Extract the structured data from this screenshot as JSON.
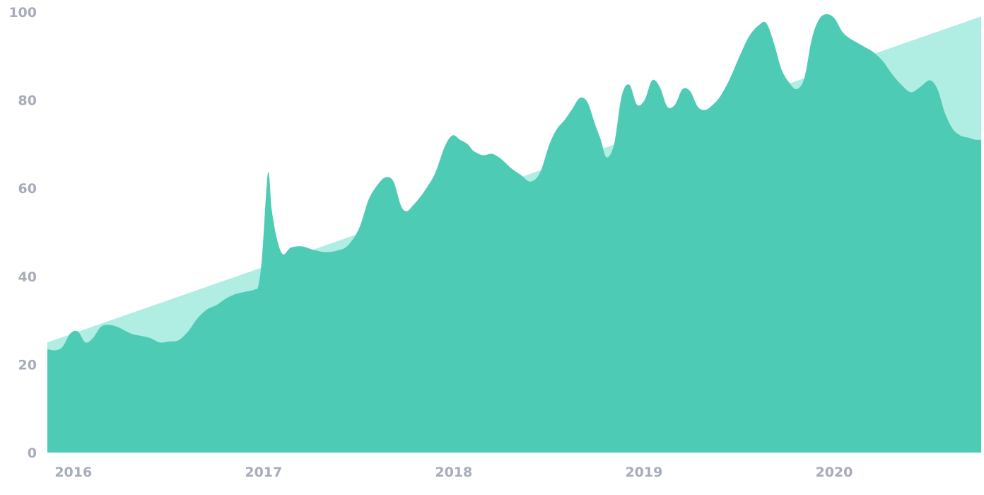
{
  "colors": {
    "trend_fill": "#b0ede2",
    "area_fill": "#4ecbb4",
    "tick_text": "#a7acb9",
    "background": "#ffffff"
  },
  "chart_data": {
    "type": "area",
    "title": "",
    "xlabel": "",
    "ylabel": "",
    "xlim": [
      2015.96,
      2020.87
    ],
    "ylim": [
      0,
      100
    ],
    "grid": false,
    "legend": "none",
    "x_ticks": [
      {
        "value": 2016,
        "label": "2016"
      },
      {
        "value": 2017,
        "label": "2017"
      },
      {
        "value": 2018,
        "label": "2018"
      },
      {
        "value": 2019,
        "label": "2019"
      },
      {
        "value": 2020,
        "label": "2020"
      }
    ],
    "y_ticks": [
      {
        "value": 0,
        "label": "0"
      },
      {
        "value": 20,
        "label": "20"
      },
      {
        "value": 40,
        "label": "40"
      },
      {
        "value": 60,
        "label": "60"
      },
      {
        "value": 80,
        "label": "80"
      },
      {
        "value": 100,
        "label": "100"
      }
    ],
    "series": [
      {
        "role": "trend",
        "x": [
          2015.96,
          2020.87
        ],
        "y": [
          25,
          99
        ]
      },
      {
        "role": "actual",
        "x": [
          2015.96,
          2016.0,
          2016.04,
          2016.08,
          2016.12,
          2016.16,
          2016.2,
          2016.24,
          2016.28,
          2016.33,
          2016.4,
          2016.45,
          2016.5,
          2016.55,
          2016.6,
          2016.65,
          2016.7,
          2016.75,
          2016.8,
          2016.85,
          2016.9,
          2016.95,
          2017.0,
          2017.05,
          2017.07,
          2017.09,
          2017.12,
          2017.14,
          2017.17,
          2017.2,
          2017.24,
          2017.3,
          2017.36,
          2017.42,
          2017.48,
          2017.54,
          2017.6,
          2017.65,
          2017.7,
          2017.74,
          2017.78,
          2017.82,
          2017.85,
          2017.88,
          2017.92,
          2017.96,
          2018.0,
          2018.05,
          2018.09,
          2018.13,
          2018.17,
          2018.2,
          2018.25,
          2018.3,
          2018.35,
          2018.4,
          2018.45,
          2018.5,
          2018.55,
          2018.6,
          2018.64,
          2018.68,
          2018.72,
          2018.76,
          2018.8,
          2018.84,
          2018.87,
          2018.9,
          2018.94,
          2018.98,
          2019.02,
          2019.06,
          2019.1,
          2019.14,
          2019.18,
          2019.22,
          2019.26,
          2019.3,
          2019.34,
          2019.38,
          2019.42,
          2019.46,
          2019.5,
          2019.55,
          2019.6,
          2019.65,
          2019.7,
          2019.74,
          2019.78,
          2019.82,
          2019.86,
          2019.9,
          2019.94,
          2019.98,
          2020.02,
          2020.06,
          2020.1,
          2020.14,
          2020.18,
          2020.22,
          2020.26,
          2020.3,
          2020.35,
          2020.4,
          2020.45,
          2020.5,
          2020.55,
          2020.6,
          2020.64,
          2020.68,
          2020.72,
          2020.76,
          2020.8,
          2020.84,
          2020.87
        ],
        "y": [
          23.5,
          23.2,
          24.0,
          27.0,
          27.5,
          25.0,
          26.0,
          28.5,
          29.0,
          28.5,
          27.0,
          26.5,
          26.0,
          25.0,
          25.2,
          25.5,
          27.5,
          30.5,
          32.5,
          33.5,
          35.0,
          36.0,
          36.5,
          37.0,
          38.0,
          45.0,
          63.5,
          55.0,
          48.0,
          45.0,
          46.5,
          46.8,
          46.0,
          45.5,
          45.8,
          47.0,
          51.0,
          57.5,
          61.0,
          62.5,
          61.5,
          56.0,
          54.8,
          56.0,
          58.0,
          60.5,
          63.5,
          69.5,
          72.0,
          71.0,
          70.0,
          68.5,
          67.5,
          67.8,
          66.5,
          64.5,
          63.0,
          61.5,
          63.5,
          70.0,
          73.5,
          75.5,
          78.0,
          80.5,
          79.5,
          74.5,
          71.0,
          67.0,
          70.0,
          81.0,
          83.5,
          79.0,
          80.0,
          84.5,
          83.0,
          78.5,
          79.0,
          82.5,
          82.0,
          78.5,
          77.8,
          79.0,
          81.0,
          85.0,
          90.0,
          94.5,
          97.0,
          97.5,
          93.0,
          87.0,
          84.0,
          82.5,
          85.0,
          94.0,
          98.5,
          99.5,
          98.5,
          95.5,
          94.0,
          93.0,
          92.0,
          91.0,
          89.0,
          86.0,
          83.5,
          81.8,
          83.0,
          84.5,
          82.5,
          77.0,
          73.5,
          72.0,
          71.5,
          71.0,
          71.0
        ]
      }
    ]
  }
}
